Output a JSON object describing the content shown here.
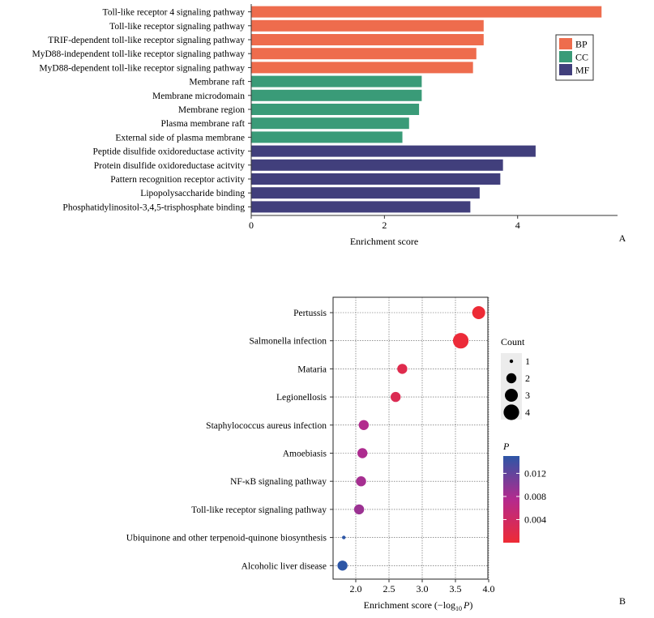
{
  "chart_data": [
    {
      "panel_label": "A",
      "type": "bar",
      "orientation": "horizontal",
      "xlabel": "Enrichment score",
      "xlim": [
        0,
        5.5
      ],
      "xticks": [
        0,
        2,
        4
      ],
      "xtick_labels": [
        "0",
        "2",
        "4"
      ],
      "legend": {
        "placement": "top-right",
        "entries": [
          {
            "name": "BP",
            "color": "#ee6c4d"
          },
          {
            "name": "CC",
            "color": "#3a9b78"
          },
          {
            "name": "MF",
            "color": "#413f7c"
          }
        ]
      },
      "bars": [
        {
          "label": "Toll-like receptor 4 signaling pathway",
          "value": 5.26,
          "group": "BP"
        },
        {
          "label": "Toll-like receptor signaling pathway",
          "value": 3.49,
          "group": "BP"
        },
        {
          "label": "TRIF-dependent toll-like receptor signaling pathway",
          "value": 3.49,
          "group": "BP"
        },
        {
          "label": "MyD88-independent toll-like receptor signaling pathway",
          "value": 3.38,
          "group": "BP"
        },
        {
          "label": "MyD88-dependent toll-like receptor signaling pathway",
          "value": 3.33,
          "group": "BP"
        },
        {
          "label": "Membrane raft",
          "value": 2.56,
          "group": "CC"
        },
        {
          "label": "Membrane microdomain",
          "value": 2.56,
          "group": "CC"
        },
        {
          "label": "Membrane region",
          "value": 2.52,
          "group": "CC"
        },
        {
          "label": "Plasma membrane raft",
          "value": 2.37,
          "group": "CC"
        },
        {
          "label": "External side of plasma membrane",
          "value": 2.27,
          "group": "CC"
        },
        {
          "label": "Peptide disulfide oxidoreductase activity",
          "value": 4.27,
          "group": "MF"
        },
        {
          "label": "Protein disulfide oxidoreductase acitvity",
          "value": 3.78,
          "group": "MF"
        },
        {
          "label": "Pattern recognition receptor activity",
          "value": 3.74,
          "group": "MF"
        },
        {
          "label": "Lipopolysaccharide binding",
          "value": 3.43,
          "group": "MF"
        },
        {
          "label": "Phosphatidylinositol-3,4,5-trisphosphate binding",
          "value": 3.29,
          "group": "MF"
        }
      ]
    },
    {
      "panel_label": "B",
      "type": "scatter",
      "subtype": "bubble",
      "xlabel_prefix": "Enrichment score (−log",
      "xlabel_sub": "10",
      "xlabel_var": "P",
      "xlabel_suffix": ")",
      "xlim": [
        1.75,
        4.0
      ],
      "xticks": [
        2.0,
        2.5,
        3.0,
        3.5,
        4.0
      ],
      "xtick_labels": [
        "2.0",
        "2.5",
        "3.0",
        "3.5",
        "4.0"
      ],
      "grid": true,
      "size_legend": {
        "title": "Count",
        "placement": "right",
        "entries": [
          1,
          2,
          3,
          4
        ]
      },
      "color_legend": {
        "title": "P",
        "placement": "right",
        "range": [
          0,
          0.015
        ],
        "ticks": [
          0.004,
          0.008,
          0.012
        ],
        "tick_labels": [
          "0.004",
          "0.008",
          "0.012"
        ],
        "low_color": "#ee2b35",
        "mid_color": "#b42a8e",
        "high_color": "#2d56a6"
      },
      "points": [
        {
          "label": "Pertussis",
          "x": 3.85,
          "count": 3,
          "p": 0.0001
        },
        {
          "label": "Salmonella infection",
          "x": 3.58,
          "count": 4,
          "p": 0.0003
        },
        {
          "label": "Mataria",
          "x": 2.7,
          "count": 2,
          "p": 0.002
        },
        {
          "label": "Legionellosis",
          "x": 2.6,
          "count": 2,
          "p": 0.0025
        },
        {
          "label": "Staphylococcus aureus infection",
          "x": 2.12,
          "count": 2,
          "p": 0.0076
        },
        {
          "label": "Amoebiasis",
          "x": 2.1,
          "count": 2,
          "p": 0.0079
        },
        {
          "label": "NF-κB signaling pathway",
          "x": 2.08,
          "count": 2,
          "p": 0.0083
        },
        {
          "label": "Toll-like receptor signaling pathway",
          "x": 2.05,
          "count": 2,
          "p": 0.0089
        },
        {
          "label": "Ubiquinone and other terpenoid-quinone biosynthesis",
          "x": 1.82,
          "count": 1,
          "p": 0.015
        },
        {
          "label": "Alcoholic liver disease",
          "x": 1.8,
          "count": 2,
          "p": 0.0158
        }
      ]
    }
  ]
}
